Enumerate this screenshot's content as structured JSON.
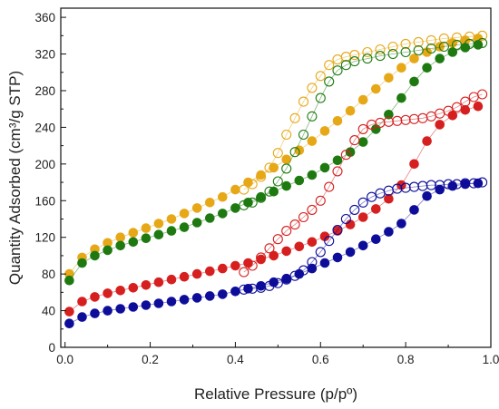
{
  "chart_data": {
    "type": "scatter",
    "title": "",
    "xlabel": "Relative Pressure (p/pº)",
    "ylabel": "Quantity Adsorbed (cm³/g STP)",
    "xlim": [
      -0.01,
      1.0
    ],
    "ylim": [
      0,
      370
    ],
    "xticks": [
      0.0,
      0.2,
      0.4,
      0.6,
      0.8,
      1.0
    ],
    "xtick_labels": [
      "0.0",
      "0.2",
      "0.4",
      "0.6",
      "0.8",
      "1.0"
    ],
    "yticks": [
      0,
      40,
      80,
      120,
      160,
      200,
      240,
      280,
      320,
      360
    ],
    "ytick_labels": [
      "0",
      "40",
      "80",
      "120",
      "160",
      "200",
      "240",
      "280",
      "320",
      "360"
    ],
    "grid": false,
    "legend": "none",
    "series": [
      {
        "color": "#e6a817",
        "fill": "filled",
        "kind": "adsorption",
        "x": [
          0.01,
          0.04,
          0.07,
          0.1,
          0.13,
          0.16,
          0.19,
          0.22,
          0.25,
          0.28,
          0.31,
          0.34,
          0.37,
          0.4,
          0.43,
          0.46,
          0.49,
          0.52,
          0.55,
          0.58,
          0.61,
          0.64,
          0.67,
          0.7,
          0.73,
          0.76,
          0.79,
          0.82,
          0.85,
          0.88,
          0.91,
          0.94,
          0.97
        ],
        "y": [
          80,
          98,
          107,
          114,
          120,
          125,
          130,
          135,
          140,
          146,
          152,
          158,
          164,
          172,
          180,
          188,
          196,
          205,
          215,
          225,
          236,
          247,
          258,
          270,
          282,
          294,
          305,
          315,
          322,
          328,
          332,
          335,
          337
        ]
      },
      {
        "color": "#e6a817",
        "fill": "open",
        "kind": "desorption",
        "x": [
          0.98,
          0.95,
          0.92,
          0.89,
          0.86,
          0.83,
          0.8,
          0.77,
          0.74,
          0.71,
          0.68,
          0.66,
          0.64,
          0.62,
          0.6,
          0.58,
          0.56,
          0.54,
          0.52,
          0.5,
          0.48,
          0.46,
          0.44,
          0.42
        ],
        "y": [
          340,
          339,
          338,
          337,
          335,
          333,
          331,
          328,
          325,
          322,
          319,
          317,
          314,
          308,
          296,
          283,
          268,
          250,
          232,
          212,
          196,
          186,
          178,
          172
        ]
      },
      {
        "color": "#1e7a10",
        "fill": "filled",
        "kind": "adsorption",
        "x": [
          0.01,
          0.04,
          0.07,
          0.1,
          0.13,
          0.16,
          0.19,
          0.22,
          0.25,
          0.28,
          0.31,
          0.34,
          0.37,
          0.4,
          0.43,
          0.46,
          0.49,
          0.52,
          0.55,
          0.58,
          0.61,
          0.64,
          0.67,
          0.7,
          0.73,
          0.76,
          0.79,
          0.82,
          0.85,
          0.88,
          0.91,
          0.94,
          0.97
        ],
        "y": [
          73,
          92,
          100,
          106,
          111,
          115,
          119,
          123,
          127,
          131,
          136,
          141,
          146,
          152,
          158,
          164,
          170,
          176,
          182,
          188,
          196,
          204,
          213,
          224,
          238,
          254,
          272,
          290,
          305,
          315,
          322,
          327,
          330
        ]
      },
      {
        "color": "#1e7a10",
        "fill": "open",
        "kind": "desorption",
        "x": [
          0.98,
          0.95,
          0.92,
          0.89,
          0.86,
          0.83,
          0.8,
          0.77,
          0.74,
          0.71,
          0.68,
          0.66,
          0.64,
          0.62,
          0.6,
          0.58,
          0.56,
          0.54,
          0.52,
          0.5,
          0.48,
          0.46,
          0.44,
          0.42
        ],
        "y": [
          332,
          331,
          330,
          328,
          326,
          324,
          322,
          320,
          318,
          315,
          312,
          308,
          302,
          290,
          272,
          252,
          232,
          213,
          195,
          181,
          170,
          163,
          158,
          155
        ]
      },
      {
        "color": "#d61f1f",
        "fill": "filled",
        "kind": "adsorption",
        "x": [
          0.01,
          0.04,
          0.07,
          0.1,
          0.13,
          0.16,
          0.19,
          0.22,
          0.25,
          0.28,
          0.31,
          0.34,
          0.37,
          0.4,
          0.43,
          0.46,
          0.49,
          0.52,
          0.55,
          0.58,
          0.61,
          0.64,
          0.67,
          0.7,
          0.73,
          0.76,
          0.79,
          0.82,
          0.85,
          0.88,
          0.91,
          0.94,
          0.97
        ],
        "y": [
          39,
          50,
          55,
          59,
          62,
          65,
          68,
          71,
          74,
          77,
          80,
          83,
          86,
          89,
          92,
          96,
          100,
          105,
          110,
          115,
          121,
          127,
          134,
          142,
          151,
          162,
          177,
          200,
          225,
          243,
          253,
          259,
          263
        ]
      },
      {
        "color": "#d61f1f",
        "fill": "open",
        "kind": "desorption",
        "x": [
          0.98,
          0.96,
          0.94,
          0.92,
          0.9,
          0.88,
          0.86,
          0.84,
          0.82,
          0.8,
          0.78,
          0.76,
          0.74,
          0.72,
          0.7,
          0.68,
          0.66,
          0.64,
          0.62,
          0.6,
          0.58,
          0.56,
          0.54,
          0.52,
          0.5,
          0.48,
          0.46,
          0.44,
          0.42
        ],
        "y": [
          276,
          273,
          268,
          262,
          258,
          255,
          252,
          250,
          249,
          248,
          247,
          246,
          245,
          243,
          238,
          226,
          210,
          192,
          175,
          160,
          150,
          142,
          134,
          127,
          118,
          108,
          98,
          89,
          82
        ]
      },
      {
        "color": "#0d0d9a",
        "fill": "filled",
        "kind": "adsorption",
        "x": [
          0.01,
          0.04,
          0.07,
          0.1,
          0.13,
          0.16,
          0.19,
          0.22,
          0.25,
          0.28,
          0.31,
          0.34,
          0.37,
          0.4,
          0.43,
          0.46,
          0.49,
          0.52,
          0.55,
          0.58,
          0.61,
          0.64,
          0.67,
          0.7,
          0.73,
          0.76,
          0.79,
          0.82,
          0.85,
          0.88,
          0.91,
          0.94,
          0.97
        ],
        "y": [
          26,
          33,
          37,
          40,
          42,
          44,
          46,
          48,
          50,
          52,
          54,
          56,
          58,
          61,
          64,
          67,
          71,
          75,
          80,
          86,
          92,
          98,
          104,
          111,
          118,
          126,
          135,
          150,
          165,
          172,
          176,
          178,
          179
        ]
      },
      {
        "color": "#0d0d9a",
        "fill": "open",
        "kind": "desorption",
        "x": [
          0.98,
          0.96,
          0.94,
          0.92,
          0.9,
          0.88,
          0.86,
          0.84,
          0.82,
          0.8,
          0.78,
          0.76,
          0.74,
          0.72,
          0.7,
          0.68,
          0.66,
          0.64,
          0.62,
          0.6,
          0.58,
          0.56,
          0.54,
          0.52,
          0.5,
          0.48,
          0.46,
          0.44,
          0.42
        ],
        "y": [
          180,
          179,
          179,
          178,
          178,
          177,
          177,
          176,
          175,
          174,
          173,
          171,
          168,
          164,
          158,
          150,
          140,
          128,
          116,
          104,
          93,
          84,
          78,
          74,
          70,
          67,
          65,
          64,
          63
        ]
      }
    ]
  }
}
